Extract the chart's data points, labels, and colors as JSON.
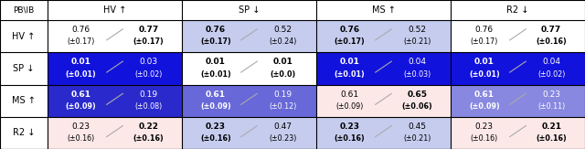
{
  "header_row": [
    "PB\\IB",
    "HV ↑",
    "SP ↓",
    "MS ↑",
    "R2 ↓"
  ],
  "row_labels": [
    "HV ↑",
    "SP ↓",
    "MS ↑",
    "R2 ↓"
  ],
  "cells": [
    [
      [
        "0.76",
        "(±0.17)",
        "0.77",
        "(±0.17)"
      ],
      [
        "0.76",
        "(±0.17)",
        "0.52",
        "(±0.24)"
      ],
      [
        "0.76",
        "(±0.17)",
        "0.52",
        "(±0.21)"
      ],
      [
        "0.76",
        "(±0.17)",
        "0.77",
        "(±0.16)"
      ]
    ],
    [
      [
        "0.01",
        "(±0.01)",
        "0.03",
        "(±0.02)"
      ],
      [
        "0.01",
        "(±0.01)",
        "0.01",
        "(±0.0)"
      ],
      [
        "0.01",
        "(±0.01)",
        "0.04",
        "(±0.03)"
      ],
      [
        "0.01",
        "(±0.01)",
        "0.04",
        "(±0.02)"
      ]
    ],
    [
      [
        "0.61",
        "(±0.09)",
        "0.19",
        "(±0.08)"
      ],
      [
        "0.61",
        "(±0.09)",
        "0.19",
        "(±0.12)"
      ],
      [
        "0.61",
        "(±0.09)",
        "0.65",
        "(±0.06)"
      ],
      [
        "0.61",
        "(±0.09)",
        "0.23",
        "(±0.11)"
      ]
    ],
    [
      [
        "0.23",
        "(±0.16)",
        "0.22",
        "(±0.16)"
      ],
      [
        "0.23",
        "(±0.16)",
        "0.47",
        "(±0.23)"
      ],
      [
        "0.23",
        "(±0.16)",
        "0.45",
        "(±0.21)"
      ],
      [
        "0.23",
        "(±0.16)",
        "0.21",
        "(±0.16)"
      ]
    ]
  ],
  "bold": [
    [
      [
        false,
        false,
        true,
        true
      ],
      [
        true,
        true,
        false,
        false
      ],
      [
        true,
        true,
        false,
        false
      ],
      [
        false,
        false,
        true,
        true
      ]
    ],
    [
      [
        true,
        true,
        false,
        false
      ],
      [
        true,
        true,
        true,
        true
      ],
      [
        true,
        true,
        false,
        false
      ],
      [
        true,
        true,
        false,
        false
      ]
    ],
    [
      [
        true,
        true,
        false,
        false
      ],
      [
        true,
        true,
        false,
        false
      ],
      [
        false,
        false,
        true,
        true
      ],
      [
        true,
        true,
        false,
        false
      ]
    ],
    [
      [
        false,
        false,
        true,
        true
      ],
      [
        true,
        true,
        false,
        false
      ],
      [
        true,
        true,
        false,
        false
      ],
      [
        false,
        false,
        true,
        true
      ]
    ]
  ],
  "bg_colors": [
    [
      "#ffffff",
      "#c5ccee",
      "#c5ccee",
      "#ffffff"
    ],
    [
      "#1212dd",
      "#ffffff",
      "#1212dd",
      "#1212dd"
    ],
    [
      "#2a2acc",
      "#6868d8",
      "#fde8e8",
      "#8888e0"
    ],
    [
      "#fde8e8",
      "#c5ccee",
      "#c5ccee",
      "#fde8e8"
    ]
  ],
  "text_colors": [
    [
      "#000000",
      "#000000",
      "#000000",
      "#000000"
    ],
    [
      "#ffffff",
      "#000000",
      "#ffffff",
      "#ffffff"
    ],
    [
      "#ffffff",
      "#ffffff",
      "#000000",
      "#ffffff"
    ],
    [
      "#000000",
      "#000000",
      "#000000",
      "#000000"
    ]
  ],
  "figsize": [
    6.4,
    1.63
  ],
  "dpi": 100
}
